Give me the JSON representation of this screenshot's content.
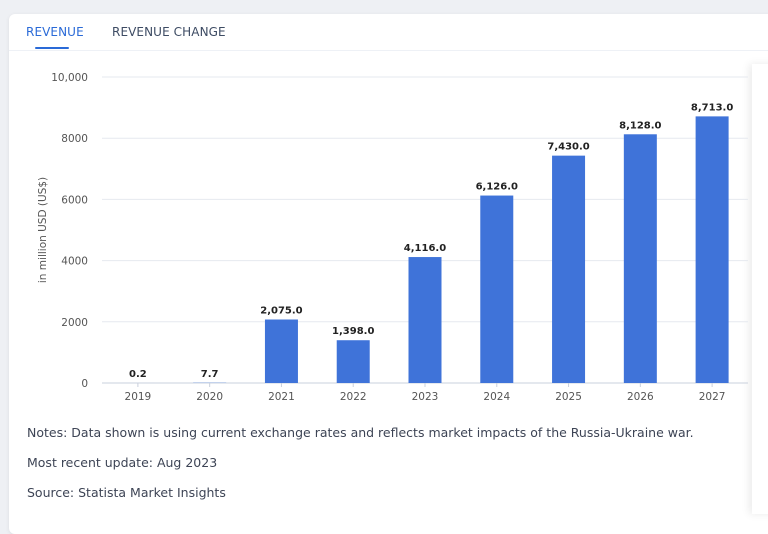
{
  "tabs": [
    {
      "label": "REVENUE",
      "active": true
    },
    {
      "label": "REVENUE CHANGE",
      "active": false
    }
  ],
  "chart_data": {
    "type": "bar",
    "categories": [
      "2019",
      "2020",
      "2021",
      "2022",
      "2023",
      "2024",
      "2025",
      "2026",
      "2027"
    ],
    "values": [
      0.2,
      7.7,
      2075.0,
      1398.0,
      4116.0,
      6126.0,
      7430.0,
      8128.0,
      8713.0
    ],
    "value_labels": [
      "0.2",
      "7.7",
      "2,075.0",
      "1,398.0",
      "4,116.0",
      "6,126.0",
      "7,430.0",
      "8,128.0",
      "8,713.0"
    ],
    "ylabel": "in million USD (US$)",
    "ylim": [
      0,
      10000
    ],
    "yticks": [
      0,
      2000,
      4000,
      6000,
      8000,
      10000
    ],
    "ytick_labels": [
      "0",
      "2000",
      "4000",
      "6000",
      "8000",
      "10,000"
    ],
    "grid": true,
    "bar_color": "#3f73d9"
  },
  "notes": [
    "Notes: Data shown is using current exchange rates and reflects market impacts of the Russia-Ukraine war.",
    "Most recent update: Aug 2023",
    "Source: Statista Market Insights"
  ]
}
